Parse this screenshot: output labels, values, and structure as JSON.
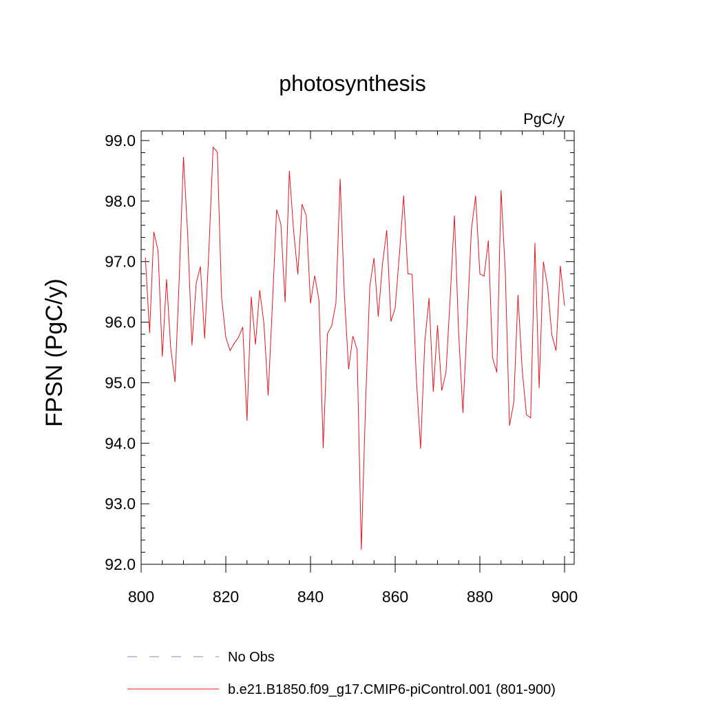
{
  "chart_data": {
    "type": "line",
    "title": "photosynthesis",
    "units_label": "PgC/y",
    "xlabel": "",
    "ylabel": "FPSN  (PgC/y)",
    "xlim": [
      800,
      900
    ],
    "ylim": [
      92.0,
      99.0
    ],
    "x_ticks": [
      800,
      820,
      840,
      860,
      880,
      900
    ],
    "x_tick_labels": [
      "800",
      "820",
      "840",
      "860",
      "880",
      "900"
    ],
    "y_ticks": [
      92,
      93,
      94,
      95,
      96,
      97,
      98,
      99
    ],
    "y_tick_labels": [
      "92.0",
      "93.0",
      "94.0",
      "95.0",
      "96.0",
      "97.0",
      "98.0",
      "99.0"
    ],
    "series": [
      {
        "name": "b.e21.B1850.f09_g17.CMIP6-piControl.001 (801-900)",
        "color": "#e8141c",
        "style": "solid",
        "x": [
          801,
          802,
          803,
          804,
          805,
          806,
          807,
          808,
          809,
          810,
          811,
          812,
          813,
          814,
          815,
          816,
          817,
          818,
          819,
          820,
          821,
          822,
          823,
          824,
          825,
          826,
          827,
          828,
          829,
          830,
          831,
          832,
          833,
          834,
          835,
          836,
          837,
          838,
          839,
          840,
          841,
          842,
          843,
          844,
          845,
          846,
          847,
          848,
          849,
          850,
          851,
          852,
          853,
          854,
          855,
          856,
          857,
          858,
          859,
          860,
          861,
          862,
          863,
          864,
          865,
          866,
          867,
          868,
          869,
          870,
          871,
          872,
          873,
          874,
          875,
          876,
          877,
          878,
          879,
          880,
          881,
          882,
          883,
          884,
          885,
          886,
          887,
          888,
          889,
          890,
          891,
          892,
          893,
          894,
          895,
          896,
          897,
          898,
          899,
          900
        ],
        "values": [
          97.07,
          95.82,
          97.49,
          97.18,
          95.43,
          96.71,
          95.56,
          95.01,
          96.72,
          98.73,
          97.44,
          95.62,
          96.64,
          96.92,
          95.73,
          97.18,
          98.89,
          98.81,
          96.41,
          95.75,
          95.53,
          95.65,
          95.75,
          95.92,
          94.37,
          96.42,
          95.63,
          96.53,
          95.98,
          94.79,
          96.29,
          97.86,
          97.62,
          96.33,
          98.5,
          97.52,
          96.79,
          97.95,
          97.76,
          96.31,
          96.77,
          96.36,
          93.92,
          95.81,
          95.94,
          96.31,
          98.37,
          96.46,
          95.22,
          95.77,
          95.55,
          92.24,
          94.64,
          96.59,
          97.06,
          96.09,
          96.96,
          97.52,
          96.01,
          96.24,
          97.12,
          98.09,
          96.8,
          96.79,
          95.07,
          93.91,
          95.68,
          96.4,
          94.85,
          95.95,
          94.87,
          95.17,
          96.42,
          97.76,
          95.8,
          94.5,
          96.0,
          97.53,
          98.09,
          96.8,
          96.76,
          97.35,
          95.41,
          95.17,
          98.18,
          96.84,
          94.29,
          94.67,
          96.45,
          95.21,
          94.47,
          94.42,
          97.31,
          94.91,
          97.0,
          96.59,
          95.79,
          95.53,
          96.93,
          96.27
        ]
      }
    ],
    "legend": [
      {
        "label": "No Obs",
        "color": "#8a7fc8",
        "style": "dashed"
      },
      {
        "label": "b.e21.B1850.f09_g17.CMIP6-piControl.001 (801-900)",
        "color": "#e8141c",
        "style": "solid"
      }
    ],
    "legend_position": "bottom-left"
  }
}
